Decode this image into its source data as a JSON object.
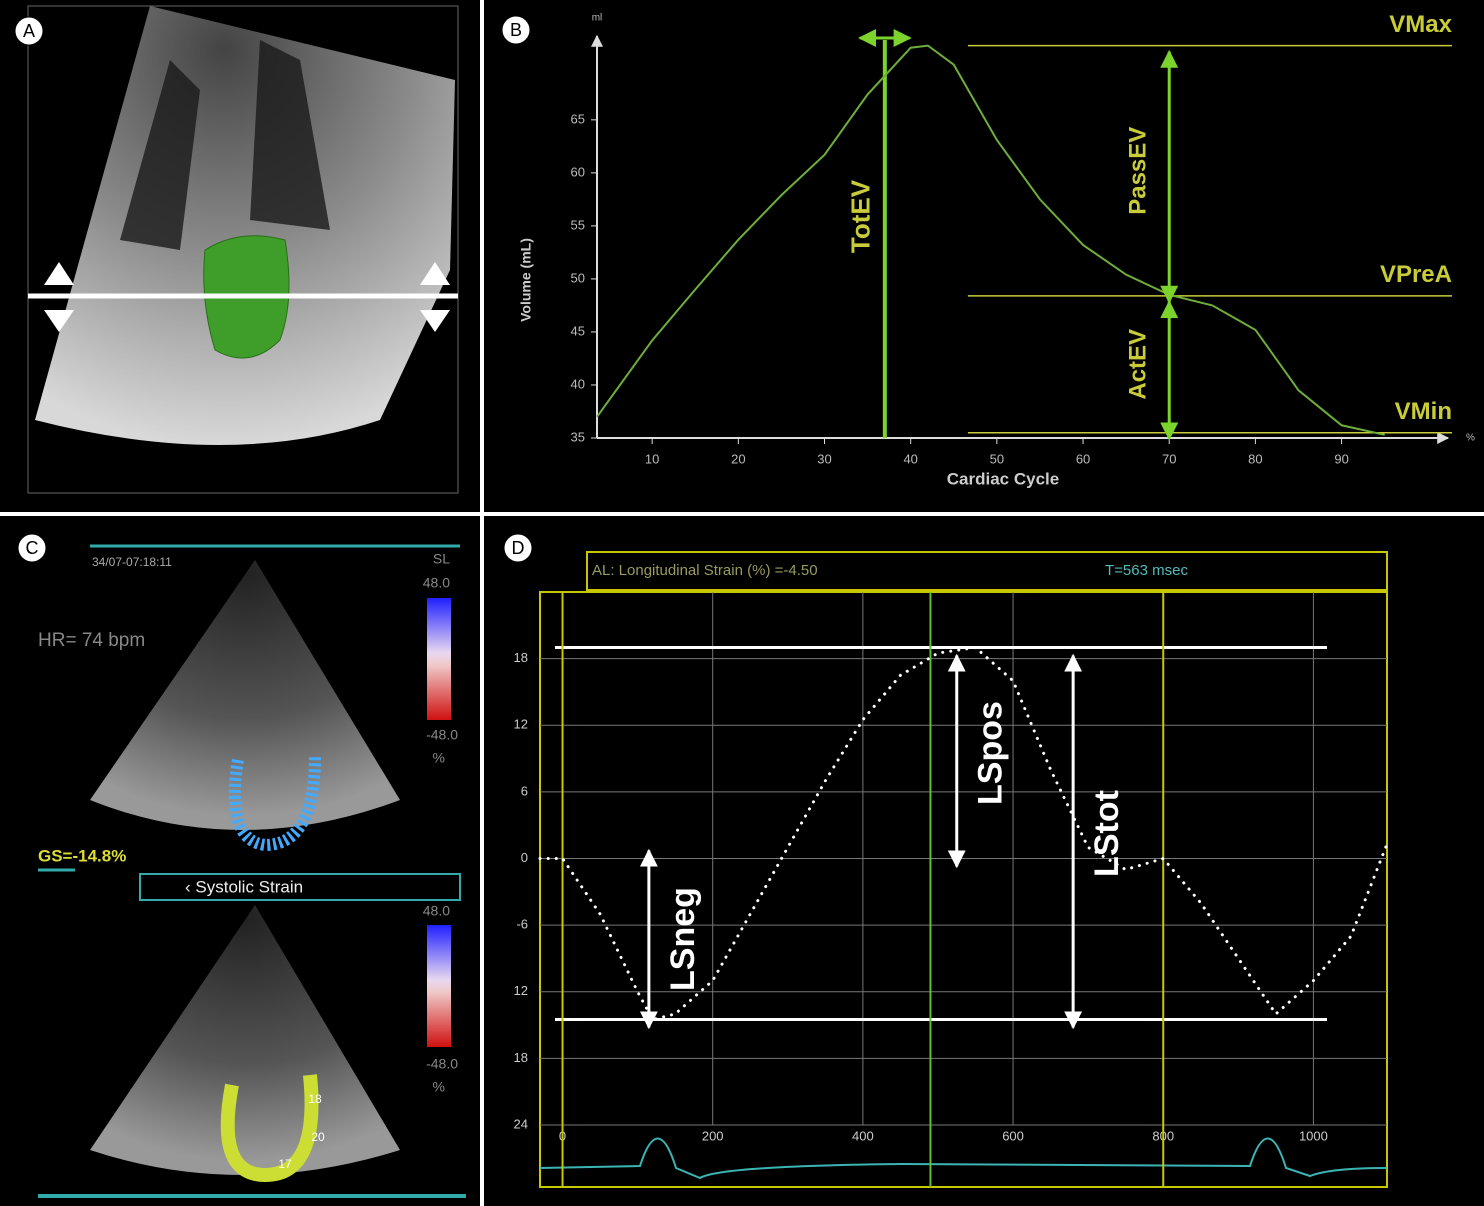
{
  "panels": {
    "a": "A",
    "b": "B",
    "c": "C",
    "d": "D"
  },
  "image_c": {
    "timestamp": "34/07-07:18:11",
    "mode": "SL",
    "scale_top": "48.0",
    "scale_bottom": "-48.0",
    "unit": "%",
    "heart_rate": "HR= 74 bpm",
    "global_strain": "GS=-14.8%",
    "menu": "‹ Systolic Strain",
    "scale_top_2": "48.0",
    "scale_bottom_2": "-48.0",
    "unit_2": "%",
    "segments": [
      "18",
      "20",
      "17"
    ]
  },
  "chart_data": [
    {
      "type": "line",
      "y_label": "Volume (mL)",
      "x_label": "Cardiac Cycle",
      "y_unit": "ml",
      "x_unit": "%",
      "x": [
        3.6,
        10,
        15,
        20,
        25,
        30,
        35,
        40,
        42,
        45,
        50,
        55,
        60,
        65,
        70,
        75,
        80,
        85,
        90,
        95
      ],
      "series": [
        {
          "color": "#6fae3a",
          "line_style": "solid",
          "values": [
            37,
            44.2,
            49,
            53.7,
            57.9,
            61.7,
            67.4,
            71.8,
            72,
            70.2,
            63.1,
            57.5,
            53.2,
            50.4,
            48.5,
            47.5,
            45.2,
            39.5,
            36.2,
            35.3
          ]
        }
      ],
      "xlim": [
        3.6,
        102
      ],
      "ylim": [
        35,
        73
      ],
      "xticks": [
        10,
        20,
        30,
        40,
        50,
        60,
        70,
        80,
        90
      ],
      "yticks": [
        35,
        40,
        45,
        50,
        55,
        60,
        65
      ],
      "grid": false,
      "tick_label_color": "#bbbbbb",
      "hlines": [
        {
          "label": "VMax",
          "value": 72,
          "color": "#c9cc3a"
        },
        {
          "label": "VPreA",
          "value": 48.4,
          "color": "#c9cc3a"
        },
        {
          "label": "VMin",
          "value": 35.5,
          "color": "#c9cc3a"
        }
      ],
      "vlines": [
        {
          "label": "TotEV",
          "value": 37,
          "color": "#7bd32c"
        }
      ],
      "arrows": [
        {
          "label": "PassEV",
          "x": 70,
          "from": 72,
          "to": 48.4,
          "color": "#7bd32c"
        },
        {
          "label": "ActEV",
          "x": 70,
          "from": 48.4,
          "to": 35.5,
          "color": "#7bd32c"
        }
      ]
    },
    {
      "type": "line",
      "header_left": "AL: Longitudinal Strain (%) =-4.50",
      "header_right": "T=563 msec",
      "x": [
        -30,
        0,
        50,
        100,
        120,
        150,
        200,
        250,
        300,
        350,
        400,
        450,
        500,
        550,
        600,
        650,
        700,
        750,
        800,
        850,
        900,
        950,
        1000,
        1050,
        1098
      ],
      "series": [
        {
          "color": "#ffffff",
          "line_style": "dotted",
          "values": [
            0,
            0,
            -5,
            -12,
            -14.5,
            -14,
            -11,
            -5,
            1,
            7,
            12.5,
            16.5,
            18.5,
            19,
            16,
            8,
            1,
            -1,
            0,
            -4,
            -9,
            -14,
            -11,
            -7,
            1.3
          ]
        }
      ],
      "xlim": [
        -30,
        1098
      ],
      "ylim": [
        -24,
        24
      ],
      "xticks": [
        0,
        200,
        400,
        600,
        800,
        1000
      ],
      "yticks": [
        18,
        12,
        6,
        0,
        -6,
        {
          "value": -12,
          "label": "12"
        },
        {
          "value": -18,
          "label": "18"
        },
        {
          "value": -24,
          "label": "24"
        }
      ],
      "grid": true,
      "tick_label_color": "#cccccc",
      "hlines": [
        {
          "value": 19,
          "color": "#ffffff"
        },
        {
          "value": -14.5,
          "color": "#ffffff"
        }
      ],
      "vlines": [
        {
          "value": 0,
          "color": "#c8c800"
        },
        {
          "value": 490,
          "color": "#5fbf2f"
        },
        {
          "value": 800,
          "color": "#c8c800"
        }
      ],
      "arrows": [
        {
          "label": "LSneg",
          "x": 115,
          "from": -14.5,
          "to": 0,
          "color": "#ffffff"
        },
        {
          "label": "LSpos",
          "x": 525,
          "from": 19,
          "to": 0,
          "color": "#ffffff"
        },
        {
          "label": "LStot",
          "x": 680,
          "from": 19,
          "to": -14.5,
          "color": "#ffffff"
        }
      ]
    }
  ]
}
